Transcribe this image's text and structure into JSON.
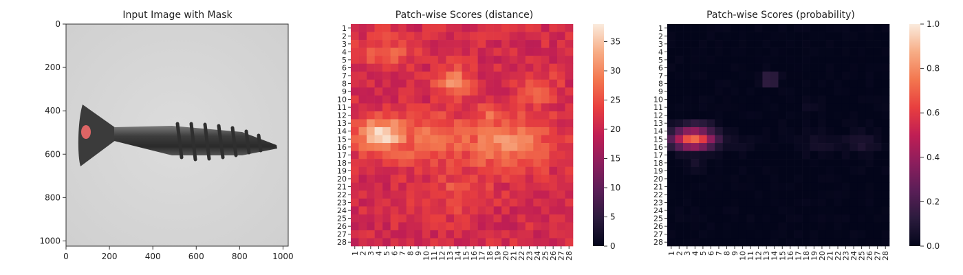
{
  "chart_data": [
    {
      "type": "image",
      "title": "Input Image with Mask",
      "xlim": [
        0,
        1024
      ],
      "ylim": [
        0,
        1024
      ],
      "x_ticks": [
        "0",
        "200",
        "400",
        "600",
        "800",
        "1000"
      ],
      "y_ticks": [
        "0",
        "200",
        "400",
        "600",
        "800",
        "1000"
      ],
      "mask_color": "#f06a6a"
    },
    {
      "type": "heatmap",
      "title": "Patch-wise Scores (distance)",
      "rows": 28,
      "cols": 28,
      "row_labels": [
        "1",
        "2",
        "3",
        "4",
        "5",
        "6",
        "7",
        "8",
        "9",
        "10",
        "11",
        "12",
        "13",
        "14",
        "15",
        "16",
        "17",
        "18",
        "19",
        "20",
        "21",
        "22",
        "23",
        "24",
        "25",
        "26",
        "27",
        "28"
      ],
      "col_labels": [
        "1",
        "2",
        "3",
        "4",
        "5",
        "6",
        "7",
        "8",
        "9",
        "10",
        "11",
        "12",
        "13",
        "14",
        "15",
        "16",
        "17",
        "18",
        "19",
        "20",
        "21",
        "22",
        "23",
        "24",
        "25",
        "26",
        "27",
        "28"
      ],
      "vmin": 0,
      "vmax": 38,
      "colorbar_ticks": [
        "0",
        "5",
        "10",
        "15",
        "20",
        "25",
        "30",
        "35"
      ],
      "colorbar_values": [
        0,
        5,
        10,
        15,
        20,
        25,
        30,
        35
      ],
      "base": 21,
      "hotspots": [
        {
          "row": 14.5,
          "col": 4.5,
          "value": 36,
          "sr": 1.6,
          "sc": 2.4
        },
        {
          "row": 15.2,
          "col": 11,
          "value": 28,
          "sr": 2.2,
          "sc": 6
        },
        {
          "row": 15.5,
          "col": 20,
          "value": 30,
          "sr": 2.5,
          "sc": 4
        },
        {
          "row": 8,
          "col": 13.5,
          "value": 30,
          "sr": 1.5,
          "sc": 1.6
        },
        {
          "row": 12,
          "col": 18.5,
          "value": 27,
          "sr": 1.2,
          "sc": 2.2
        },
        {
          "row": 4,
          "col": 5,
          "value": 26,
          "sr": 1.5,
          "sc": 2.5
        },
        {
          "row": 21.5,
          "col": 14,
          "value": 25,
          "sr": 2,
          "sc": 3
        },
        {
          "row": 9,
          "col": 24,
          "value": 25,
          "sr": 2,
          "sc": 2
        },
        {
          "row": 25,
          "col": 2,
          "value": 14,
          "sr": 1.4,
          "sc": 1
        },
        {
          "row": 19,
          "col": 7,
          "value": 15,
          "sr": 1,
          "sc": 1.4
        },
        {
          "row": 20,
          "col": 27,
          "value": 15,
          "sr": 1.4,
          "sc": 1
        },
        {
          "row": 9,
          "col": 2,
          "value": 16,
          "sr": 1.2,
          "sc": 1.2
        }
      ]
    },
    {
      "type": "heatmap",
      "title": "Patch-wise Scores (probability)",
      "rows": 28,
      "cols": 28,
      "row_labels": [
        "1",
        "2",
        "3",
        "4",
        "5",
        "6",
        "7",
        "8",
        "9",
        "10",
        "11",
        "12",
        "13",
        "14",
        "15",
        "16",
        "17",
        "18",
        "19",
        "20",
        "21",
        "22",
        "23",
        "24",
        "25",
        "26",
        "27",
        "28"
      ],
      "col_labels": [
        "1",
        "2",
        "3",
        "4",
        "5",
        "6",
        "7",
        "8",
        "9",
        "10",
        "11",
        "12",
        "13",
        "14",
        "15",
        "16",
        "17",
        "18",
        "19",
        "20",
        "21",
        "22",
        "23",
        "24",
        "25",
        "26",
        "27",
        "28"
      ],
      "vmin": 0,
      "vmax": 1,
      "colorbar_ticks": [
        "0.0",
        "0.2",
        "0.4",
        "0.6",
        "0.8",
        "1.0"
      ],
      "colorbar_values": [
        0,
        0.2,
        0.4,
        0.6,
        0.8,
        1.0
      ],
      "base": 0.0,
      "hotspots": [
        {
          "row": 15,
          "col": 3.8,
          "value": 0.72,
          "sr": 0.9,
          "sc": 1.9
        },
        {
          "row": 14,
          "col": 4,
          "value": 0.35,
          "sr": 0.7,
          "sc": 1.8
        },
        {
          "row": 7.5,
          "col": 13.5,
          "value": 0.22,
          "sr": 0.6,
          "sc": 0.7
        },
        {
          "row": 15.5,
          "col": 9,
          "value": 0.05,
          "sr": 1,
          "sc": 1.2
        },
        {
          "row": 15.5,
          "col": 25,
          "value": 0.09,
          "sr": 0.9,
          "sc": 1.6
        },
        {
          "row": 15.5,
          "col": 20,
          "value": 0.05,
          "sr": 1,
          "sc": 2
        },
        {
          "row": 11,
          "col": 18.5,
          "value": 0.05,
          "sr": 0.6,
          "sc": 0.6
        },
        {
          "row": 18,
          "col": 4,
          "value": 0.06,
          "sr": 0.9,
          "sc": 0.9
        }
      ]
    }
  ]
}
